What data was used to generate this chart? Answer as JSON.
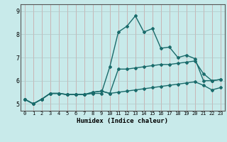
{
  "title": "",
  "xlabel": "Humidex (Indice chaleur)",
  "ylabel": "",
  "background_color": "#c8eaea",
  "grid_color": "#b0c8c8",
  "line_color": "#1a6b6b",
  "x": [
    0,
    1,
    2,
    3,
    4,
    5,
    6,
    7,
    8,
    9,
    10,
    11,
    12,
    13,
    14,
    15,
    16,
    17,
    18,
    19,
    20,
    21,
    22,
    23
  ],
  "line1": [
    5.2,
    5.0,
    5.2,
    5.45,
    5.45,
    5.4,
    5.4,
    5.4,
    5.45,
    5.45,
    6.6,
    8.1,
    8.35,
    8.8,
    8.1,
    8.25,
    7.4,
    7.45,
    7.0,
    7.1,
    6.95,
    6.0,
    6.0,
    6.05
  ],
  "line2": [
    5.2,
    5.0,
    5.2,
    5.45,
    5.45,
    5.4,
    5.4,
    5.4,
    5.5,
    5.55,
    5.45,
    6.5,
    6.5,
    6.55,
    6.6,
    6.65,
    6.7,
    6.7,
    6.75,
    6.8,
    6.85,
    6.3,
    6.0,
    6.05
  ],
  "line3": [
    5.2,
    5.0,
    5.2,
    5.45,
    5.45,
    5.4,
    5.4,
    5.4,
    5.5,
    5.55,
    5.45,
    5.5,
    5.55,
    5.6,
    5.65,
    5.7,
    5.75,
    5.8,
    5.85,
    5.9,
    5.95,
    5.8,
    5.6,
    5.7
  ],
  "ylim": [
    4.7,
    9.3
  ],
  "yticks": [
    5,
    6,
    7,
    8,
    9
  ],
  "xticks": [
    0,
    1,
    2,
    3,
    4,
    5,
    6,
    7,
    8,
    9,
    10,
    11,
    12,
    13,
    14,
    15,
    16,
    17,
    18,
    19,
    20,
    21,
    22,
    23
  ],
  "marker": "D",
  "markersize": 2.0,
  "linewidth": 1.0
}
